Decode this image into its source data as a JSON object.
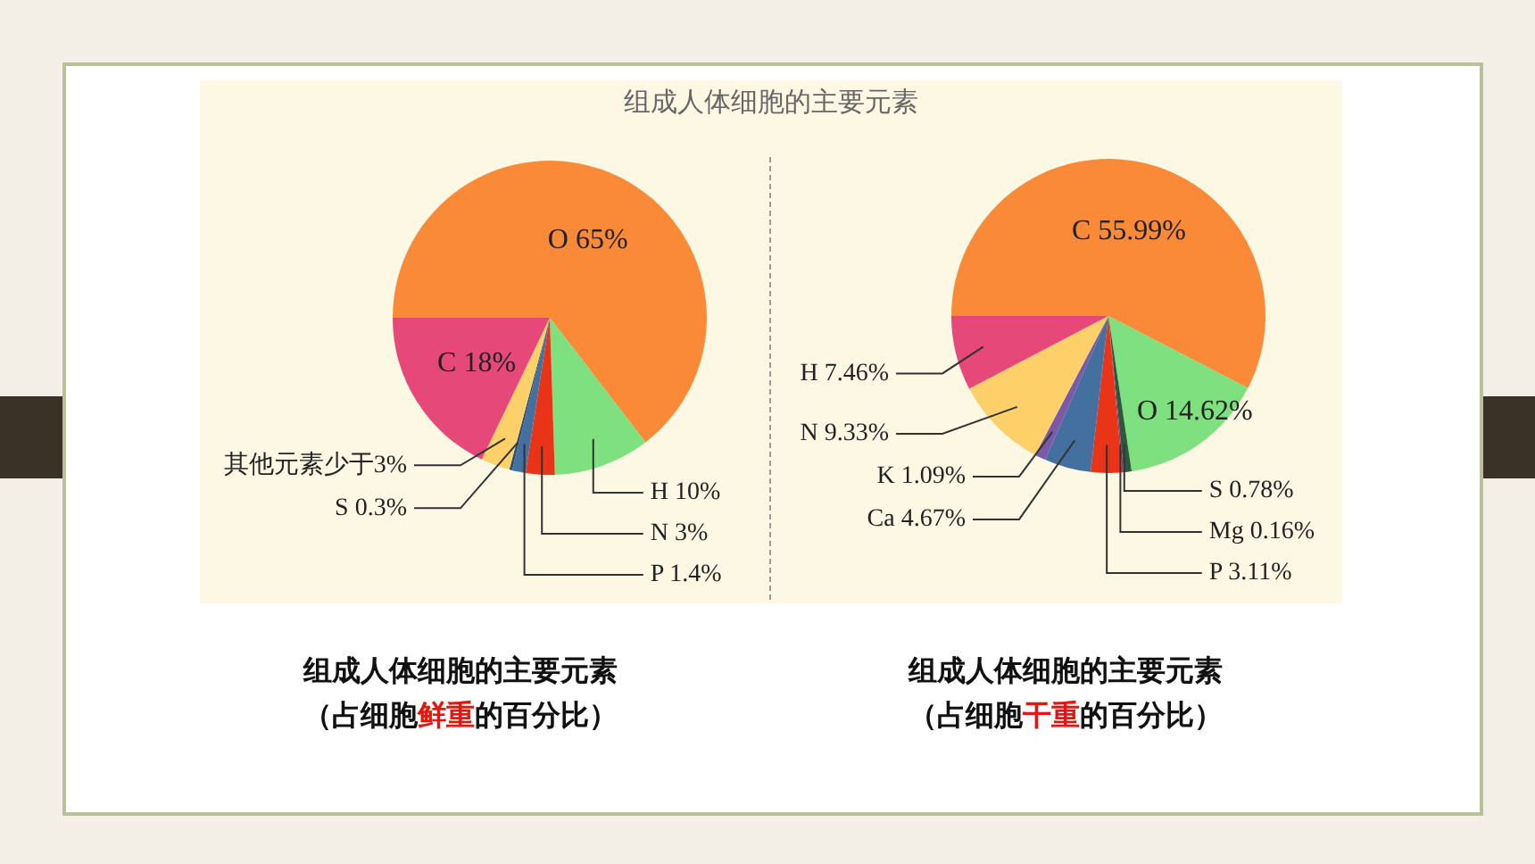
{
  "chart_data": [
    {
      "type": "pie",
      "title": "组成人体细胞的主要元素",
      "categories": [
        "O",
        "H",
        "N",
        "P",
        "S",
        "其他元素",
        "C"
      ],
      "values": [
        65,
        10,
        3,
        1.4,
        0.3,
        3,
        18
      ],
      "value_labels": [
        "65%",
        "10%",
        "3%",
        "1.4%",
        "0.3%",
        "少于3%",
        "18%"
      ],
      "colors": [
        "#fa8a38",
        "#7fe07f",
        "#ea3418",
        "#44709f",
        "#2f4f7a",
        "#fdd06a",
        "#e6487a"
      ],
      "annotations": [
        "组成人体细胞的主要元素",
        "（占细胞鲜重的百分比）"
      ]
    },
    {
      "type": "pie",
      "categories": [
        "C",
        "O",
        "S",
        "Mg",
        "P",
        "Ca",
        "K",
        "N",
        "H"
      ],
      "values": [
        55.99,
        14.62,
        0.78,
        0.16,
        3.11,
        4.67,
        1.09,
        9.33,
        7.46
      ],
      "value_labels": [
        "55.99%",
        "14.62%",
        "0.78%",
        "0.16%",
        "3.11%",
        "4.67%",
        "1.09%",
        "9.33%",
        "7.46%"
      ],
      "colors": [
        "#fa8a38",
        "#7fe07f",
        "#2a5a3c",
        "#7a3a7a",
        "#ea3418",
        "#44709f",
        "#7a5aa8",
        "#fdd06a",
        "#e6487a"
      ],
      "annotations": [
        "组成人体细胞的主要元素",
        "（占细胞干重的百分比）"
      ]
    }
  ]
}
